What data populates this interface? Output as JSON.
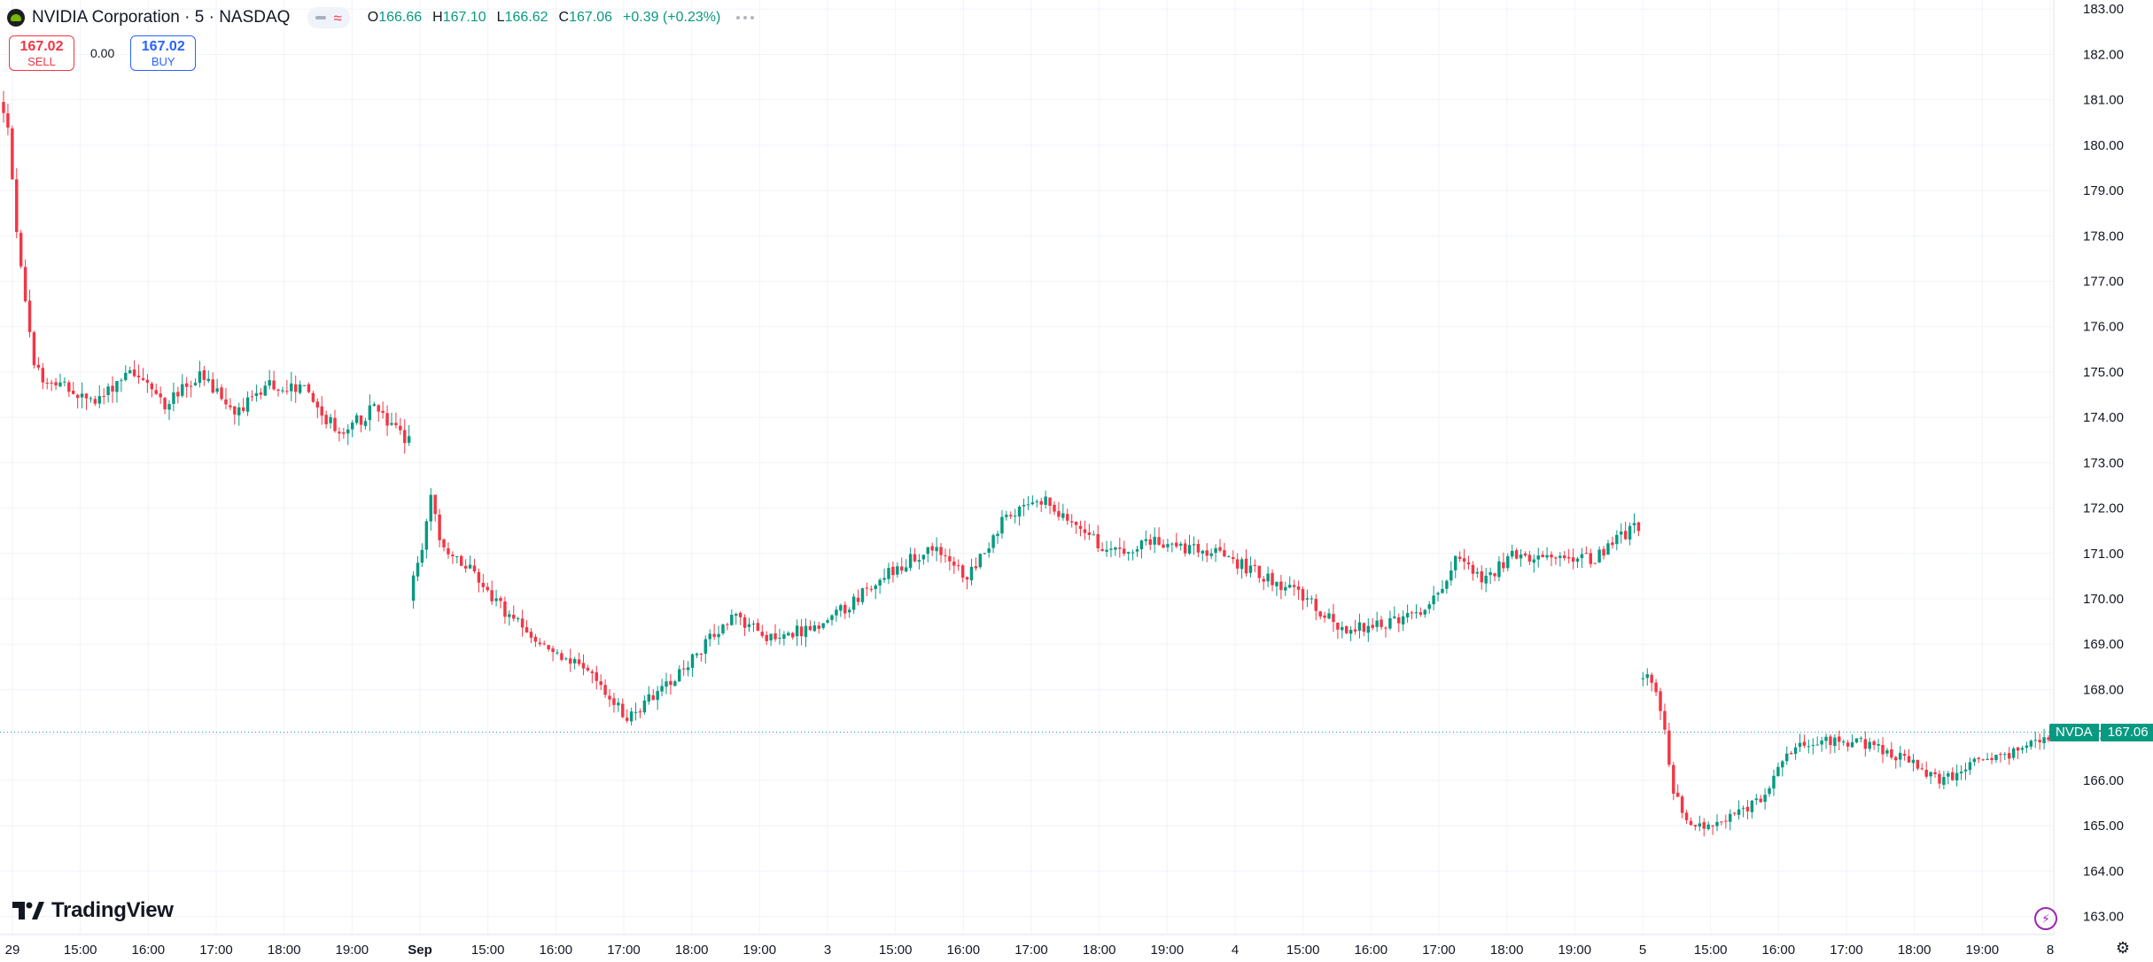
{
  "header": {
    "title": "NVIDIA Corporation · 5 · NASDAQ",
    "ohlc": [
      {
        "key": "O",
        "value": "166.66"
      },
      {
        "key": "H",
        "value": "167.10"
      },
      {
        "key": "L",
        "value": "166.62"
      },
      {
        "key": "C",
        "value": "167.06"
      },
      {
        "key": "",
        "value": "+0.39 (+0.23%)"
      }
    ]
  },
  "trade": {
    "sell_price": "167.02",
    "sell_label": "SELL",
    "spread": "0.00",
    "buy_price": "167.02",
    "buy_label": "BUY"
  },
  "last_price_tag": {
    "symbol": "NVDA",
    "value": "167.06"
  },
  "brand": "TradingView",
  "colors": {
    "up": "#089981",
    "down": "#f23645",
    "grid": "#f0f3fa",
    "axis_text": "#131722"
  },
  "chart_data": {
    "type": "candlestick",
    "title": "NVIDIA Corporation · 5 · NASDAQ",
    "interval": "5",
    "exchange": "NASDAQ",
    "xlabel": "",
    "ylabel": "",
    "ylim": [
      162.6,
      183.2
    ],
    "y_ticks": [
      "183.00",
      "182.00",
      "181.00",
      "180.00",
      "179.00",
      "178.00",
      "177.00",
      "176.00",
      "175.00",
      "174.00",
      "173.00",
      "172.00",
      "171.00",
      "170.00",
      "169.00",
      "168.00",
      "167.00",
      "166.00",
      "165.00",
      "164.00",
      "163.00"
    ],
    "x_ticks": [
      "29",
      "15:00",
      "16:00",
      "17:00",
      "18:00",
      "19:00",
      "Sep",
      "15:00",
      "16:00",
      "17:00",
      "18:00",
      "19:00",
      "3",
      "15:00",
      "16:00",
      "17:00",
      "18:00",
      "19:00",
      "4",
      "15:00",
      "16:00",
      "17:00",
      "18:00",
      "19:00",
      "5",
      "15:00",
      "16:00",
      "17:00",
      "18:00",
      "19:00",
      "8"
    ],
    "x_tick_bold": [
      false,
      false,
      false,
      false,
      false,
      false,
      true,
      false,
      false,
      false,
      false,
      false,
      false,
      false,
      false,
      false,
      false,
      false,
      false,
      false,
      false,
      false,
      false,
      false,
      false,
      false,
      false,
      false,
      false,
      false,
      false
    ],
    "grid": true,
    "last_price": 167.06,
    "sessions": [
      {
        "start": 0,
        "bars": 94,
        "path": [
          [
            0,
            181.0
          ],
          [
            2,
            180.3
          ],
          [
            4,
            178.2
          ],
          [
            8,
            175.0
          ],
          [
            14,
            174.7
          ],
          [
            22,
            174.3
          ],
          [
            30,
            175.1
          ],
          [
            38,
            174.3
          ],
          [
            46,
            174.9
          ],
          [
            54,
            174.1
          ],
          [
            62,
            174.7
          ],
          [
            70,
            174.6
          ],
          [
            78,
            173.6
          ],
          [
            86,
            174.2
          ],
          [
            93,
            173.5
          ]
        ],
        "noise": 0.32
      },
      {
        "start": 94,
        "bars": 282,
        "path": [
          [
            0,
            170.0
          ],
          [
            3,
            171.2
          ],
          [
            5,
            172.2
          ],
          [
            8,
            171.0
          ],
          [
            14,
            170.7
          ],
          [
            22,
            169.7
          ],
          [
            30,
            169.0
          ],
          [
            40,
            168.5
          ],
          [
            50,
            167.4
          ],
          [
            58,
            168.0
          ],
          [
            66,
            168.8
          ],
          [
            74,
            169.6
          ],
          [
            82,
            169.2
          ],
          [
            92,
            169.3
          ],
          [
            100,
            169.8
          ],
          [
            110,
            170.6
          ],
          [
            120,
            171.1
          ],
          [
            128,
            170.5
          ],
          [
            136,
            171.7
          ],
          [
            146,
            172.2
          ],
          [
            154,
            171.5
          ],
          [
            162,
            171.0
          ],
          [
            170,
            171.3
          ],
          [
            178,
            171.1
          ],
          [
            186,
            171.0
          ],
          [
            196,
            170.5
          ],
          [
            206,
            170.0
          ],
          [
            214,
            169.3
          ],
          [
            222,
            169.4
          ],
          [
            230,
            169.6
          ],
          [
            236,
            170.0
          ],
          [
            240,
            171.0
          ],
          [
            246,
            170.4
          ],
          [
            254,
            171.0
          ],
          [
            262,
            170.8
          ],
          [
            272,
            170.9
          ],
          [
            281,
            171.6
          ]
        ],
        "noise": 0.28
      },
      {
        "start": 376,
        "bars": 94,
        "path": [
          [
            0,
            168.2
          ],
          [
            2,
            168.4
          ],
          [
            5,
            167.6
          ],
          [
            8,
            165.8
          ],
          [
            12,
            164.9
          ],
          [
            18,
            165.0
          ],
          [
            22,
            165.2
          ],
          [
            28,
            165.6
          ],
          [
            34,
            166.6
          ],
          [
            42,
            166.9
          ],
          [
            52,
            166.8
          ],
          [
            62,
            166.4
          ],
          [
            70,
            166.0
          ],
          [
            78,
            166.5
          ],
          [
            86,
            166.6
          ],
          [
            93,
            167.0
          ]
        ],
        "noise": 0.25
      }
    ]
  }
}
